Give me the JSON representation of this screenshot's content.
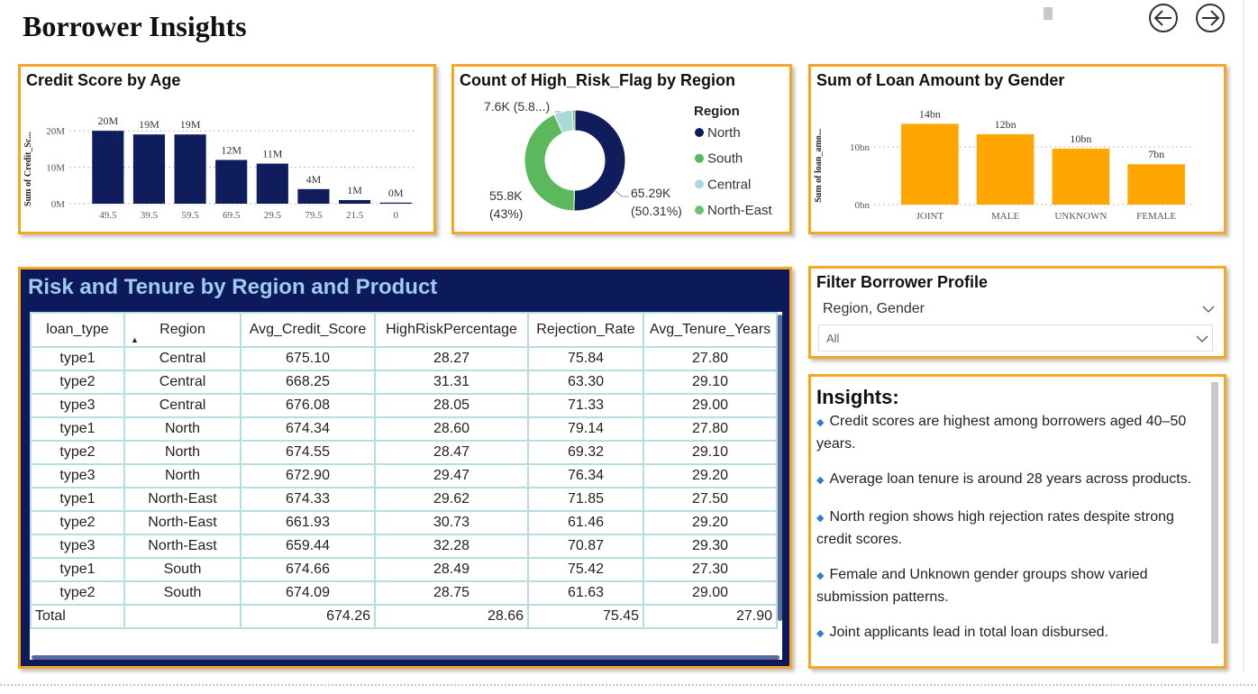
{
  "header": {
    "title": "Borrower Insights"
  },
  "chart_data": [
    {
      "type": "bar",
      "title": "Credit Score by Age",
      "y_label": "Sum of Credit_Sc...",
      "categories": [
        "49.5",
        "39.5",
        "59.5",
        "69.5",
        "29.5",
        "79.5",
        "21.5",
        "0"
      ],
      "values": [
        20,
        19,
        19,
        12,
        11,
        4,
        1,
        0.3
      ],
      "value_labels": [
        "20M",
        "19M",
        "19M",
        "12M",
        "11M",
        "4M",
        "1M",
        "0M"
      ],
      "color": "#0f1d5c",
      "ylim": [
        0,
        23
      ],
      "yticks": [
        {
          "value": 0,
          "label": "0M"
        },
        {
          "value": 10,
          "label": "10M"
        },
        {
          "value": 20,
          "label": "20M"
        }
      ],
      "grid": true
    },
    {
      "type": "donut",
      "title": "Count of High_Risk_Flag by Region",
      "legend_title": "Region",
      "categories": [
        "North",
        "South",
        "Central",
        "North-East"
      ],
      "values": [
        65.29,
        55.8,
        7.6,
        1.1
      ],
      "value_labels": [
        "65.29K (50.31%)",
        "55.8K (43%)",
        "7.6K (5.8...)",
        null
      ],
      "colors": [
        "#0f1d5c",
        "#5cb85c",
        "#a8dadc",
        "#6cc36c"
      ]
    },
    {
      "type": "bar",
      "title": "Sum of Loan Amount by Gender",
      "y_label": "Sum of loan_amo...",
      "categories": [
        "JOINT",
        "MALE",
        "UNKNOWN",
        "FEMALE"
      ],
      "values": [
        14,
        12.2,
        9.7,
        7
      ],
      "value_labels": [
        "14bn",
        "12bn",
        "10bn",
        "7bn"
      ],
      "color": "#ffa600",
      "ylim": [
        0,
        16
      ],
      "yticks": [
        {
          "value": 0,
          "label": "0bn"
        },
        {
          "value": 10,
          "label": "10bn"
        }
      ],
      "grid": true
    }
  ],
  "table": {
    "title": "Risk and Tenure by Region and Product",
    "columns": [
      "loan_type",
      "Region",
      "Avg_Credit_Score",
      "HighRiskPercentage",
      "Rejection_Rate",
      "Avg_Tenure_Years"
    ],
    "rows": [
      [
        "type1",
        "Central",
        "675.10",
        "28.27",
        "75.84",
        "27.80"
      ],
      [
        "type2",
        "Central",
        "668.25",
        "31.31",
        "63.30",
        "29.10"
      ],
      [
        "type3",
        "Central",
        "676.08",
        "28.05",
        "71.33",
        "29.00"
      ],
      [
        "type1",
        "North",
        "674.34",
        "28.60",
        "79.14",
        "27.80"
      ],
      [
        "type2",
        "North",
        "674.55",
        "28.47",
        "69.32",
        "29.10"
      ],
      [
        "type3",
        "North",
        "672.90",
        "29.47",
        "76.34",
        "29.20"
      ],
      [
        "type1",
        "North-East",
        "674.33",
        "29.62",
        "71.85",
        "27.50"
      ],
      [
        "type2",
        "North-East",
        "661.93",
        "30.73",
        "61.46",
        "29.20"
      ],
      [
        "type3",
        "North-East",
        "659.44",
        "32.28",
        "70.87",
        "29.30"
      ],
      [
        "type1",
        "South",
        "674.66",
        "28.49",
        "75.42",
        "27.30"
      ],
      [
        "type2",
        "South",
        "674.09",
        "28.75",
        "61.63",
        "29.00"
      ]
    ],
    "total": {
      "label": "Total",
      "values": [
        "674.26",
        "28.66",
        "75.45",
        "27.90"
      ]
    }
  },
  "slicer": {
    "title": "Filter Borrower Profile",
    "field": "Region, Gender",
    "value": "All"
  },
  "insights": {
    "title": "Insights:",
    "items": [
      "Credit scores are highest among borrowers aged 40–50 years.",
      "Average loan tenure is around 28 years across products.",
      "North region shows high rejection rates despite strong credit scores.",
      "Female and Unknown gender groups show varied submission patterns.",
      "Joint applicants lead in total loan disbursed."
    ]
  }
}
